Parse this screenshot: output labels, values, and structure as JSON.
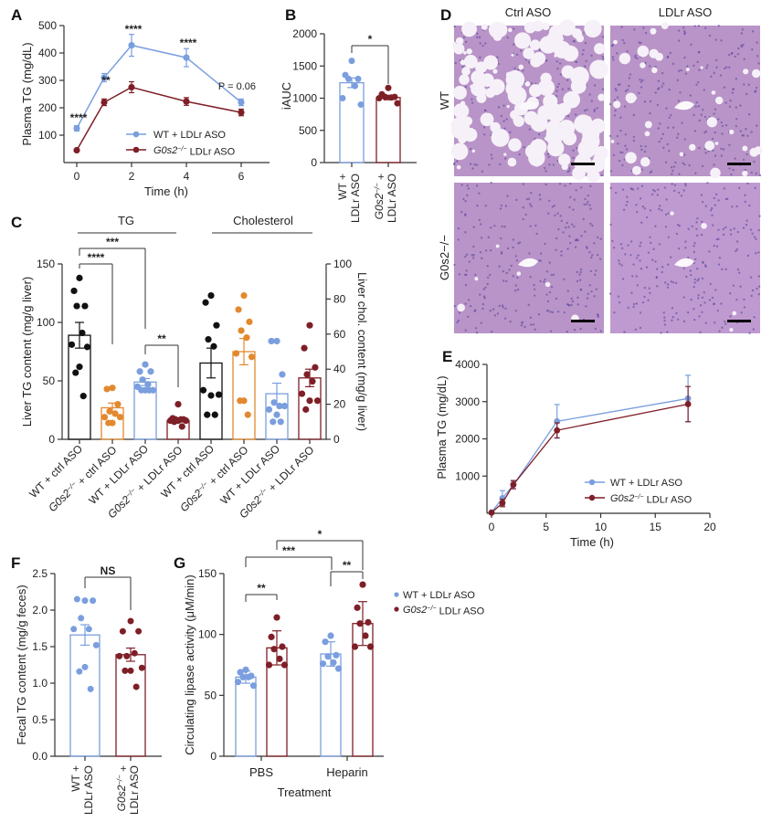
{
  "colors": {
    "wt": "#7a9ede",
    "ko": "#7e1f27",
    "orange": "#e2892f",
    "black": "#111111",
    "tissue": "#b994c8"
  },
  "panels": {
    "A": "A",
    "B": "B",
    "C": "C",
    "D": "D",
    "E": "E",
    "F": "F",
    "G": "G"
  },
  "chart_data": [
    {
      "id": "A",
      "type": "line",
      "xlabel": "Time (h)",
      "ylabel": "Plasma TG (mg/dL)",
      "xlim": [
        0,
        6
      ],
      "ylim": [
        0,
        500
      ],
      "xticks": [
        "0",
        "2",
        "4",
        "6"
      ],
      "yticks": [
        "100",
        "200",
        "300",
        "400",
        "500"
      ],
      "legend": "bottom-center",
      "series": [
        {
          "name": "WT + LDLr ASO",
          "x": [
            0,
            1,
            2,
            4,
            6
          ],
          "y": [
            125,
            310,
            428,
            383,
            220
          ],
          "err": [
            10,
            15,
            40,
            33,
            12
          ]
        },
        {
          "name": "G0s2−/− LDLr ASO",
          "x": [
            0,
            1,
            2,
            4,
            6
          ],
          "y": [
            45,
            220,
            275,
            223,
            183
          ],
          "err": [
            3,
            12,
            20,
            14,
            12
          ]
        }
      ],
      "annotations": [
        {
          "x": 0,
          "text": "****"
        },
        {
          "x": 1,
          "text": "**"
        },
        {
          "x": 2,
          "text": "****"
        },
        {
          "x": 4,
          "text": "****"
        },
        {
          "x": 6,
          "text": "P = 0.06"
        }
      ]
    },
    {
      "id": "B",
      "type": "bar",
      "ylabel": "iAUC",
      "ylim": [
        0,
        2000
      ],
      "yticks": [
        "0",
        "500",
        "1000",
        "1500",
        "2000"
      ],
      "categories": [
        "WT + LDLr ASO",
        "G0s2−/− + LDLr ASO"
      ],
      "values": [
        1240,
        1010
      ],
      "err": [
        75,
        35
      ],
      "points": [
        [
          1580,
          1360,
          1300,
          1300,
          1190,
          1000,
          900
        ],
        [
          1160,
          1060,
          1020,
          1020,
          1010,
          1000,
          920
        ]
      ],
      "significance": [
        {
          "from": 0,
          "to": 1,
          "text": "*"
        }
      ]
    },
    {
      "id": "C",
      "type": "bar",
      "group_labels": [
        "TG",
        "Cholesterol"
      ],
      "ylabel": "Liver TG content (mg/g liver)",
      "ylim": [
        0,
        150
      ],
      "yticks": [
        "0",
        "50",
        "100",
        "150"
      ],
      "ylabel_right": "Liver chol. content (mg/g liver)",
      "ylim_right": [
        0,
        100
      ],
      "yticks_right": [
        "0",
        "20",
        "40",
        "60",
        "80",
        "100"
      ],
      "categories": [
        "WT + ctrl ASO",
        "G0s2−/− + ctrl ASO",
        "WT + LDLr ASO",
        "G0s2−/− + LDLr ASO",
        "WT + ctrl ASO",
        "G0s2−/− + ctrl ASO",
        "WT + LDLr ASO",
        "G0s2−/− + LDLr ASO"
      ],
      "axis": [
        "left",
        "left",
        "left",
        "left",
        "right",
        "right",
        "right",
        "right"
      ],
      "values": [
        89,
        27,
        49,
        16,
        43.5,
        50,
        26,
        35
      ],
      "err": [
        11,
        4,
        3,
        1,
        8.5,
        7.5,
        6,
        5
      ],
      "points": [
        [
          138,
          127,
          114,
          114,
          91,
          81,
          79,
          62,
          57,
          37
        ],
        [
          44,
          43,
          30,
          24,
          22,
          19,
          19,
          14,
          14
        ],
        [
          64,
          58,
          58,
          51,
          47,
          45,
          42,
          42,
          42,
          42
        ],
        [
          30,
          18,
          17,
          17,
          17,
          16,
          16,
          16,
          15,
          11
        ],
        [
          82,
          78,
          65,
          57,
          53,
          28,
          25.5,
          25,
          14,
          14
        ],
        [
          82,
          74,
          67,
          62,
          58,
          49,
          47,
          22,
          22,
          14
        ],
        [
          56,
          56,
          37,
          21,
          19,
          17,
          19,
          14,
          10,
          10
        ],
        [
          65,
          52,
          41,
          37,
          33,
          26,
          22,
          22,
          17
        ]
      ],
      "significance": [
        {
          "from": 0,
          "to": 1,
          "text": "****"
        },
        {
          "from": 0,
          "to": 2,
          "text": "***"
        },
        {
          "from": 2,
          "to": 3,
          "text": "**"
        }
      ]
    },
    {
      "id": "E",
      "type": "line",
      "xlabel": "Time (h)",
      "ylabel": "Plasma TG (mg/dL)",
      "xlim": [
        0,
        20
      ],
      "ylim": [
        0,
        4000
      ],
      "xticks": [
        "0",
        "5",
        "10",
        "15",
        "20"
      ],
      "yticks": [
        "1000",
        "2000",
        "3000",
        "4000"
      ],
      "legend": "bottom-right",
      "series": [
        {
          "name": "WT + LDLr ASO",
          "x": [
            0,
            1,
            2,
            6,
            18
          ],
          "y": [
            50,
            430,
            780,
            2480,
            3090
          ],
          "err": [
            30,
            200,
            100,
            450,
            620
          ]
        },
        {
          "name": "G0s2−/− LDLr ASO",
          "x": [
            0,
            1,
            2,
            6,
            18
          ],
          "y": [
            40,
            300,
            790,
            2240,
            2940
          ],
          "err": [
            20,
            100,
            110,
            200,
            470
          ]
        }
      ]
    },
    {
      "id": "F",
      "type": "bar",
      "ylabel": "Fecal TG content (mg/g feces)",
      "ylim": [
        0,
        2.5
      ],
      "yticks": [
        "0.0",
        "0.5",
        "1.0",
        "1.5",
        "2.0",
        "2.5"
      ],
      "categories": [
        "WT + LDLr ASO",
        "G0s2−/− + LDLr ASO"
      ],
      "values": [
        1.66,
        1.39
      ],
      "err": [
        0.14,
        0.09
      ],
      "points": [
        [
          2.13,
          2.15,
          2.13,
          1.89,
          1.74,
          1.74,
          1.52,
          1.22,
          1.16,
          0.92
        ],
        [
          1.85,
          1.71,
          1.71,
          1.37,
          1.41,
          1.37,
          1.21,
          1.17,
          1.17,
          0.95
        ]
      ],
      "significance": [
        {
          "from": 0,
          "to": 1,
          "text": "NS"
        }
      ]
    },
    {
      "id": "G",
      "type": "bar",
      "xlabel": "Treatment",
      "ylabel": "Circulating lipase activity (μM/min)",
      "ylim": [
        0,
        150
      ],
      "yticks": [
        "0",
        "50",
        "100",
        "150"
      ],
      "categories": [
        "PBS",
        "Heparin"
      ],
      "legend": "right",
      "series": [
        {
          "name": "WT + LDLr ASO",
          "values": [
            65,
            84
          ],
          "err": [
            5,
            10
          ],
          "points": [
            [
              71,
              69,
              66,
              65,
              65,
              61,
              58
            ],
            [
              99,
              94,
              83,
              82,
              77,
              76,
              72
            ]
          ]
        },
        {
          "name": "G0s2−/− LDLr ASO",
          "values": [
            89,
            109
          ],
          "err": [
            14,
            18
          ],
          "points": [
            [
              114,
              98,
              90,
              88,
              80,
              75,
              75
            ],
            [
              141,
              122,
              110,
              109,
              99,
              90,
              90
            ]
          ]
        }
      ],
      "significance": [
        {
          "from": 0,
          "to": 1,
          "text": "**"
        },
        {
          "from": 2,
          "to": 3,
          "text": "**"
        },
        {
          "from": 0,
          "to": 2,
          "text": "***"
        },
        {
          "from": 1,
          "to": 3,
          "text": "*"
        }
      ]
    }
  ],
  "histology": {
    "columns": [
      "Ctrl ASO",
      "LDLr ASO"
    ],
    "rows": [
      "WT",
      "G0s2−/−"
    ]
  }
}
